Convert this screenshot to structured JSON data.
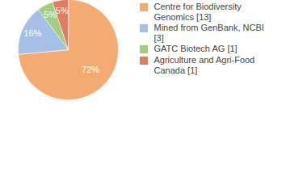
{
  "chart_data": {
    "type": "pie",
    "categories": [
      "Centre for Biodiversity Genomics [13]",
      "Mined from GenBank, NCBI [3]",
      "GATC Biotech AG [1]",
      "Agriculture and Agri-Food Canada [1]"
    ],
    "values": [
      72,
      16,
      5,
      5
    ],
    "value_labels": [
      "72%",
      "16%",
      "5%",
      "5%"
    ],
    "colors": [
      "#f4ab71",
      "#a5bfe6",
      "#9fcf7f",
      "#e07c5f"
    ],
    "data_labels": true,
    "legend": "right"
  }
}
